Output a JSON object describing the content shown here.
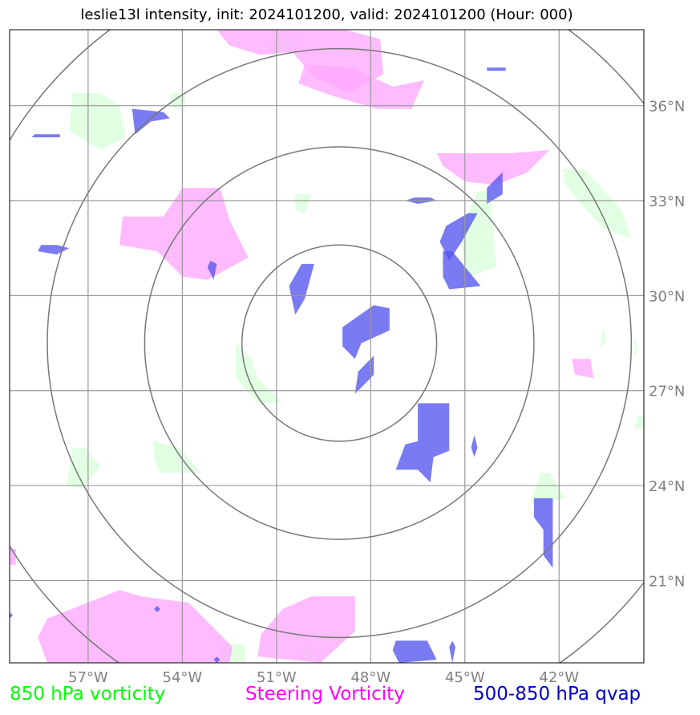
{
  "title": "leslie13l intensity, init: 2024101200, valid: 2024101200 (Hour: 000)",
  "map": {
    "lon_range": [
      -59.5,
      -39.3
    ],
    "lat_range": [
      18.4,
      38.4
    ],
    "center": {
      "lon": -49.0,
      "lat": 28.5
    },
    "lat_ticks": [
      {
        "value": 36,
        "label": "36°N"
      },
      {
        "value": 33,
        "label": "33°N"
      },
      {
        "value": 30,
        "label": "30°N"
      },
      {
        "value": 27,
        "label": "27°N"
      },
      {
        "value": 24,
        "label": "24°N"
      },
      {
        "value": 21,
        "label": "21°N"
      }
    ],
    "lon_ticks": [
      {
        "value": -57,
        "label": "57°W"
      },
      {
        "value": -54,
        "label": "54°W"
      },
      {
        "value": -51,
        "label": "51°W"
      },
      {
        "value": -48,
        "label": "48°W"
      },
      {
        "value": -45,
        "label": "45°W"
      },
      {
        "value": -42,
        "label": "42°W"
      }
    ],
    "grid": true,
    "range_rings_deg": [
      3.1,
      6.2,
      9.3,
      12.3
    ]
  },
  "legend": {
    "vorticity_850": {
      "label": "850 hPa vorticity",
      "color": "#00ff00"
    },
    "steering": {
      "label": "Steering Vorticity",
      "color": "#ff00ff"
    },
    "qvap": {
      "label": "500-850 hPa qvap",
      "color": "#0000cc"
    }
  },
  "fill_colors": {
    "green": "#ccffcc",
    "pink": "#ffaaff",
    "blue": "#5555ee"
  },
  "fields": {
    "green": [
      [
        [
          -57.5,
          36.4
        ],
        [
          -56.6,
          36.4
        ],
        [
          -56.0,
          36.0
        ],
        [
          -55.8,
          35.0
        ],
        [
          -56.6,
          34.6
        ],
        [
          -57.6,
          35.2
        ]
      ],
      [
        [
          -54.4,
          36.4
        ],
        [
          -53.9,
          36.4
        ],
        [
          -53.9,
          35.9
        ],
        [
          -54.3,
          35.9
        ]
      ],
      [
        [
          -51.4,
          38.1
        ],
        [
          -50.3,
          38.3
        ],
        [
          -50.2,
          37.8
        ],
        [
          -51.2,
          37.7
        ]
      ],
      [
        [
          -50.4,
          33.2
        ],
        [
          -49.9,
          33.2
        ],
        [
          -50.1,
          32.6
        ],
        [
          -50.4,
          32.7
        ]
      ],
      [
        [
          -44.6,
          33.3
        ],
        [
          -44.2,
          33.3
        ],
        [
          -44.0,
          30.9
        ],
        [
          -44.9,
          30.6
        ],
        [
          -45.2,
          31.9
        ]
      ],
      [
        [
          -41.9,
          34.0
        ],
        [
          -41.2,
          34.0
        ],
        [
          -40.0,
          32.7
        ],
        [
          -39.7,
          31.8
        ],
        [
          -40.6,
          32.1
        ],
        [
          -41.8,
          33.5
        ]
      ],
      [
        [
          -39.6,
          28.7
        ],
        [
          -39.5,
          28.3
        ],
        [
          -39.6,
          28.0
        ]
      ],
      [
        [
          -52.3,
          28.5
        ],
        [
          -51.8,
          28.0
        ],
        [
          -51.6,
          27.4
        ],
        [
          -50.8,
          26.6
        ],
        [
          -51.6,
          26.6
        ],
        [
          -52.3,
          27.4
        ]
      ],
      [
        [
          -54.9,
          25.4
        ],
        [
          -54.1,
          25.2
        ],
        [
          -53.4,
          24.4
        ],
        [
          -54.7,
          24.4
        ],
        [
          -54.9,
          24.9
        ]
      ],
      [
        [
          -57.5,
          25.2
        ],
        [
          -57.1,
          25.2
        ],
        [
          -56.6,
          24.6
        ],
        [
          -57.2,
          23.9
        ],
        [
          -57.7,
          24.0
        ]
      ],
      [
        [
          -42.6,
          24.4
        ],
        [
          -42.3,
          24.4
        ],
        [
          -41.8,
          23.6
        ],
        [
          -42.9,
          23.4
        ]
      ],
      [
        [
          -39.5,
          26.2
        ],
        [
          -39.3,
          26.2
        ],
        [
          -39.3,
          25.8
        ],
        [
          -39.6,
          25.8
        ]
      ],
      [
        [
          -52.8,
          19.0
        ],
        [
          -52.0,
          19.0
        ],
        [
          -52.0,
          18.4
        ],
        [
          -52.8,
          18.4
        ]
      ],
      [
        [
          -50.2,
          19.0
        ],
        [
          -49.8,
          19.0
        ],
        [
          -49.8,
          18.6
        ],
        [
          -50.2,
          18.6
        ]
      ],
      [
        [
          -40.6,
          29.0
        ],
        [
          -40.5,
          28.5
        ],
        [
          -40.7,
          28.4
        ]
      ]
    ],
    "pink": [
      [
        [
          -52.9,
          38.4
        ],
        [
          -48.8,
          38.4
        ],
        [
          -47.7,
          38.1
        ],
        [
          -47.6,
          37.0
        ],
        [
          -48.7,
          36.4
        ],
        [
          -49.8,
          36.9
        ],
        [
          -50.5,
          37.7
        ],
        [
          -51.5,
          37.6
        ],
        [
          -52.5,
          37.9
        ]
      ],
      [
        [
          -50.1,
          37.3
        ],
        [
          -48.6,
          37.2
        ],
        [
          -47.3,
          36.6
        ],
        [
          -46.3,
          36.8
        ],
        [
          -46.7,
          35.9
        ],
        [
          -47.8,
          35.9
        ],
        [
          -49.2,
          36.3
        ],
        [
          -50.3,
          36.7
        ]
      ],
      [
        [
          -45.9,
          34.5
        ],
        [
          -43.5,
          34.5
        ],
        [
          -42.3,
          34.6
        ],
        [
          -43.0,
          33.9
        ],
        [
          -44.0,
          33.5
        ],
        [
          -45.0,
          33.6
        ],
        [
          -45.7,
          34.1
        ]
      ],
      [
        [
          -55.9,
          32.5
        ],
        [
          -54.6,
          32.5
        ],
        [
          -54.0,
          33.4
        ],
        [
          -52.8,
          33.4
        ],
        [
          -52.5,
          32.4
        ],
        [
          -51.9,
          31.2
        ],
        [
          -53.2,
          30.5
        ],
        [
          -54.0,
          30.6
        ],
        [
          -54.8,
          31.4
        ],
        [
          -56.0,
          31.6
        ]
      ],
      [
        [
          -41.6,
          28.0
        ],
        [
          -41.0,
          28.0
        ],
        [
          -40.9,
          27.4
        ],
        [
          -41.5,
          27.5
        ]
      ],
      [
        [
          -59.5,
          22.0
        ],
        [
          -59.3,
          22.0
        ],
        [
          -59.3,
          21.5
        ],
        [
          -59.5,
          21.5
        ]
      ],
      [
        [
          -58.3,
          19.8
        ],
        [
          -56.0,
          20.7
        ],
        [
          -55.3,
          20.5
        ],
        [
          -53.8,
          20.3
        ],
        [
          -52.4,
          18.9
        ],
        [
          -52.5,
          18.4
        ],
        [
          -58.3,
          18.4
        ],
        [
          -58.6,
          19.2
        ]
      ],
      [
        [
          -50.8,
          20.1
        ],
        [
          -49.9,
          20.5
        ],
        [
          -48.5,
          20.5
        ],
        [
          -48.5,
          19.4
        ],
        [
          -49.6,
          18.4
        ],
        [
          -51.6,
          18.6
        ],
        [
          -51.5,
          19.3
        ]
      ]
    ],
    "blue": [
      [
        [
          -55.6,
          35.9
        ],
        [
          -54.6,
          35.8
        ],
        [
          -54.4,
          35.6
        ],
        [
          -55.0,
          35.5
        ],
        [
          -55.5,
          35.1
        ]
      ],
      [
        [
          -50.2,
          31.0
        ],
        [
          -49.8,
          31.0
        ],
        [
          -50.1,
          29.9
        ],
        [
          -50.4,
          29.4
        ],
        [
          -50.6,
          30.3
        ]
      ],
      [
        [
          -48.9,
          29.0
        ],
        [
          -47.9,
          29.7
        ],
        [
          -47.4,
          29.6
        ],
        [
          -47.4,
          28.9
        ],
        [
          -48.3,
          28.5
        ],
        [
          -48.5,
          28.0
        ],
        [
          -48.9,
          28.4
        ]
      ],
      [
        [
          -48.4,
          27.6
        ],
        [
          -47.9,
          28.1
        ],
        [
          -47.9,
          27.5
        ],
        [
          -48.5,
          26.9
        ]
      ],
      [
        [
          -46.5,
          26.6
        ],
        [
          -45.5,
          26.6
        ],
        [
          -45.5,
          25.1
        ],
        [
          -46.0,
          24.9
        ],
        [
          -46.1,
          24.1
        ],
        [
          -46.5,
          24.5
        ],
        [
          -47.2,
          24.5
        ],
        [
          -46.9,
          25.3
        ],
        [
          -46.5,
          25.4
        ]
      ],
      [
        [
          -45.7,
          31.4
        ],
        [
          -45.4,
          31.4
        ],
        [
          -44.5,
          30.3
        ],
        [
          -45.5,
          30.2
        ],
        [
          -45.7,
          30.6
        ]
      ],
      [
        [
          -45.6,
          32.2
        ],
        [
          -44.9,
          32.6
        ],
        [
          -44.6,
          32.6
        ],
        [
          -45.1,
          31.7
        ],
        [
          -45.5,
          31.1
        ],
        [
          -45.8,
          31.7
        ]
      ],
      [
        [
          -44.3,
          33.4
        ],
        [
          -43.8,
          33.9
        ],
        [
          -43.8,
          33.2
        ],
        [
          -44.3,
          32.9
        ]
      ],
      [
        [
          -46.6,
          33.1
        ],
        [
          -46.1,
          33.1
        ],
        [
          -45.9,
          33.0
        ],
        [
          -46.5,
          32.9
        ],
        [
          -46.9,
          33.0
        ]
      ],
      [
        [
          -58.5,
          31.6
        ],
        [
          -58.0,
          31.6
        ],
        [
          -57.6,
          31.5
        ],
        [
          -58.0,
          31.3
        ],
        [
          -58.6,
          31.4
        ]
      ],
      [
        [
          -53.1,
          31.1
        ],
        [
          -52.9,
          31.0
        ],
        [
          -53.0,
          30.5
        ],
        [
          -53.2,
          30.9
        ]
      ],
      [
        [
          -42.8,
          23.6
        ],
        [
          -42.2,
          23.6
        ],
        [
          -42.2,
          21.4
        ],
        [
          -42.5,
          21.8
        ],
        [
          -42.5,
          22.6
        ],
        [
          -42.8,
          23.0
        ]
      ],
      [
        [
          -44.7,
          25.6
        ],
        [
          -44.6,
          25.2
        ],
        [
          -44.7,
          24.9
        ],
        [
          -44.8,
          25.2
        ]
      ],
      [
        [
          -45.4,
          19.1
        ],
        [
          -45.3,
          18.9
        ],
        [
          -45.4,
          18.4
        ],
        [
          -45.5,
          18.9
        ]
      ],
      [
        [
          -47.2,
          19.1
        ],
        [
          -46.2,
          19.1
        ],
        [
          -45.9,
          18.5
        ],
        [
          -47.1,
          18.4
        ],
        [
          -47.3,
          18.8
        ]
      ],
      [
        [
          -58.7,
          35.1
        ],
        [
          -57.9,
          35.1
        ],
        [
          -57.9,
          35.0
        ],
        [
          -58.8,
          35.0
        ]
      ],
      [
        [
          -44.3,
          37.2
        ],
        [
          -43.7,
          37.2
        ],
        [
          -43.7,
          37.1
        ],
        [
          -44.3,
          37.1
        ]
      ],
      [
        [
          -54.8,
          20.2
        ],
        [
          -54.7,
          20.1
        ],
        [
          -54.8,
          20.0
        ],
        [
          -54.9,
          20.1
        ]
      ],
      [
        [
          -52.9,
          18.6
        ],
        [
          -52.8,
          18.5
        ],
        [
          -52.9,
          18.4
        ],
        [
          -53.0,
          18.5
        ]
      ],
      [
        [
          -59.5,
          20.0
        ],
        [
          -59.4,
          19.9
        ],
        [
          -59.5,
          19.8
        ],
        [
          -59.6,
          19.9
        ]
      ]
    ]
  }
}
